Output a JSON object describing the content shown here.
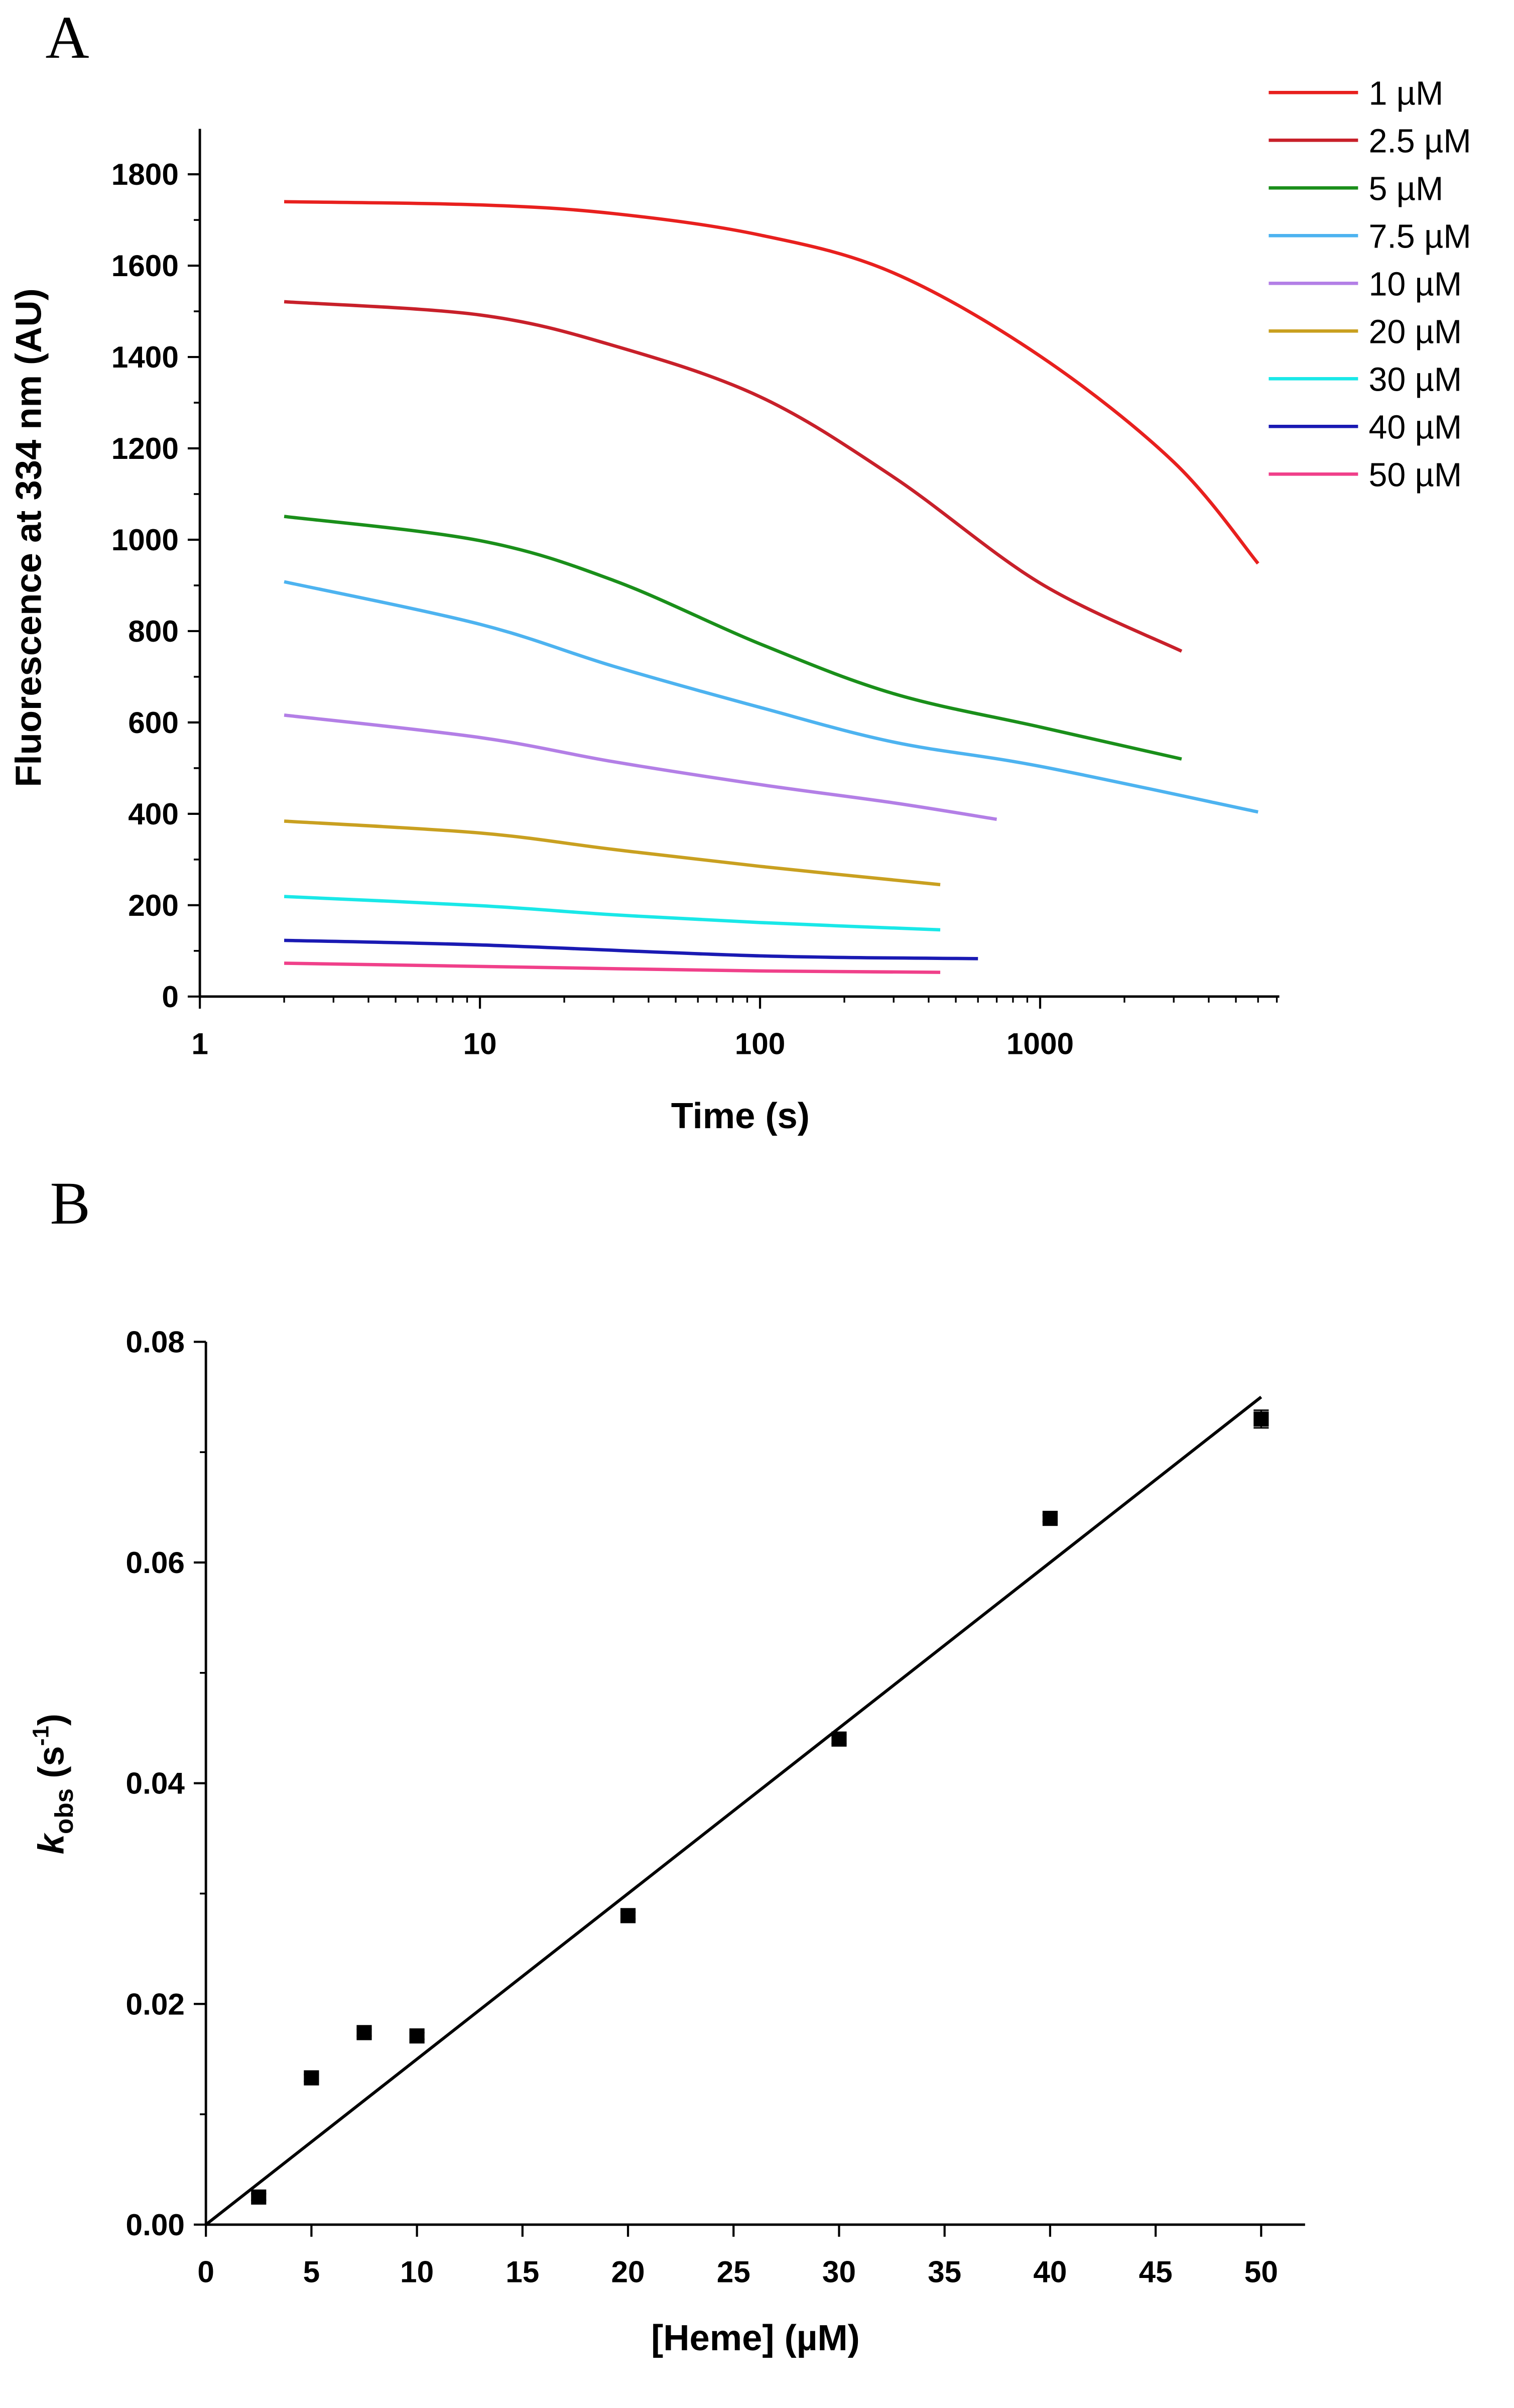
{
  "chart_data": [
    {
      "panel": "A",
      "type": "line",
      "xlabel": "Time (s)",
      "ylabel": "Fluorescence at 334 nm (AU)",
      "xscale": "log",
      "xlim": [
        1,
        7000
      ],
      "ylim": [
        0,
        1900
      ],
      "xticks": [
        1,
        10,
        100,
        1000
      ],
      "xtick_labels": [
        "1",
        "10",
        "100",
        "1000"
      ],
      "yticks": [
        0,
        200,
        400,
        600,
        800,
        1000,
        1200,
        1400,
        1600,
        1800
      ],
      "ytick_labels": [
        "0",
        "200",
        "400",
        "600",
        "800",
        "1000",
        "1200",
        "1400",
        "1600",
        "1800"
      ],
      "grid": false,
      "legend_position": "top-right",
      "series": [
        {
          "name": "1 µM",
          "color": "#e8201e",
          "points": [
            [
              2,
              1740
            ],
            [
              10,
              1733
            ],
            [
              30,
              1714
            ],
            [
              100,
              1667
            ],
            [
              300,
              1584
            ],
            [
              1000,
              1402
            ],
            [
              3000,
              1170
            ],
            [
              6000,
              948
            ]
          ]
        },
        {
          "name": "2.5 µM",
          "color": "#c8202a",
          "points": [
            [
              2,
              1521
            ],
            [
              10,
              1492
            ],
            [
              30,
              1425
            ],
            [
              100,
              1313
            ],
            [
              300,
              1137
            ],
            [
              1000,
              905
            ],
            [
              3200,
              756
            ]
          ]
        },
        {
          "name": "5 µM",
          "color": "#1a8f1a",
          "points": [
            [
              2,
              1051
            ],
            [
              10,
              998
            ],
            [
              30,
              911
            ],
            [
              100,
              772
            ],
            [
              300,
              663
            ],
            [
              1000,
              590
            ],
            [
              3200,
              520
            ]
          ]
        },
        {
          "name": "7.5 µM",
          "color": "#4db3f0",
          "points": [
            [
              2,
              908
            ],
            [
              10,
              815
            ],
            [
              30,
              723
            ],
            [
              100,
              633
            ],
            [
              300,
              557
            ],
            [
              1000,
              504
            ],
            [
              6000,
              404
            ]
          ]
        },
        {
          "name": "10 µM",
          "color": "#b37fe6",
          "points": [
            [
              2,
              616
            ],
            [
              10,
              567
            ],
            [
              30,
              514
            ],
            [
              100,
              464
            ],
            [
              300,
              424
            ],
            [
              700,
              388
            ]
          ]
        },
        {
          "name": "20 µM",
          "color": "#c9a020",
          "points": [
            [
              2,
              384
            ],
            [
              10,
              358
            ],
            [
              30,
              322
            ],
            [
              100,
              285
            ],
            [
              440,
              245
            ]
          ]
        },
        {
          "name": "30 µM",
          "color": "#19e8e8",
          "points": [
            [
              2,
              219
            ],
            [
              10,
              199
            ],
            [
              30,
              179
            ],
            [
              100,
              162
            ],
            [
              440,
              146
            ]
          ]
        },
        {
          "name": "40 µM",
          "color": "#1a1ab3",
          "points": [
            [
              2,
              123
            ],
            [
              10,
              113
            ],
            [
              100,
              89
            ],
            [
              600,
              83
            ]
          ]
        },
        {
          "name": "50 µM",
          "color": "#f0408a",
          "points": [
            [
              2,
              73
            ],
            [
              10,
              66
            ],
            [
              100,
              56
            ],
            [
              440,
              53
            ]
          ]
        }
      ]
    },
    {
      "panel": "B",
      "type": "scatter",
      "xlabel": "[Heme] (µM)",
      "ylabel_parts": [
        "k",
        "obs",
        " (s",
        "-1",
        ")"
      ],
      "xlim": [
        0,
        52
      ],
      "ylim": [
        0,
        0.08
      ],
      "xticks": [
        0,
        5,
        10,
        15,
        20,
        25,
        30,
        35,
        40,
        45,
        50
      ],
      "xtick_labels": [
        "0",
        "5",
        "10",
        "15",
        "20",
        "25",
        "30",
        "35",
        "40",
        "45",
        "50"
      ],
      "yticks": [
        0,
        0.02,
        0.04,
        0.06,
        0.08
      ],
      "ytick_labels": [
        "0.00",
        "0.02",
        "0.04",
        "0.06",
        "0.08"
      ],
      "grid": false,
      "x": [
        2.5,
        5,
        7.5,
        10,
        20,
        30,
        40,
        50
      ],
      "y": [
        0.0025,
        0.0133,
        0.0174,
        0.0171,
        0.028,
        0.044,
        0.064,
        0.073
      ],
      "yerr": [
        0.0003,
        0.0003,
        0.0003,
        0.0003,
        0.0003,
        0.0004,
        0.0003,
        0.0008
      ],
      "fit": {
        "type": "linear",
        "slope": 0.0015,
        "intercept": 0,
        "x_range": [
          0,
          50
        ]
      }
    }
  ]
}
